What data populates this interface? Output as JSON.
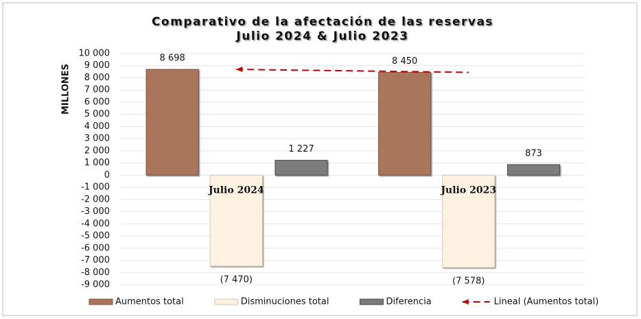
{
  "chart_data": {
    "type": "bar",
    "title": "Comparativo de la afectación de las reservas",
    "subtitle": "Julio 2024 & Julio 2023",
    "y_label": "MILLONES",
    "categories": [
      "Julio 2024",
      "Julio 2023"
    ],
    "series": [
      {
        "name": "Aumentos total",
        "color": "#a9765c",
        "values": [
          8698,
          8450
        ],
        "value_labels": [
          "8 698",
          "8 450"
        ]
      },
      {
        "name": "Disminuciones total",
        "color": "#fdf2e2",
        "values": [
          -7470,
          -7578
        ],
        "value_labels": [
          "(7 470)",
          "(7 578)"
        ]
      },
      {
        "name": "Diferencia",
        "color": "#7b7b7b",
        "values": [
          1227,
          873
        ],
        "value_labels": [
          "1 227",
          "873"
        ]
      }
    ],
    "trendline": {
      "name": "Lineal (Aumentos total)",
      "color": "#c00000"
    },
    "ylim": [
      -9000,
      10000
    ],
    "yticks": [
      {
        "value": 10000,
        "label": "10 000"
      },
      {
        "value": 9000,
        "label": "9 000"
      },
      {
        "value": 8000,
        "label": "8 000"
      },
      {
        "value": 7000,
        "label": "7 000"
      },
      {
        "value": 6000,
        "label": "6 000"
      },
      {
        "value": 5000,
        "label": "5 000"
      },
      {
        "value": 4000,
        "label": "4 000"
      },
      {
        "value": 3000,
        "label": "3 000"
      },
      {
        "value": 2000,
        "label": "2 000"
      },
      {
        "value": 1000,
        "label": "1 000"
      },
      0,
      {
        "value": -1000,
        "label": "-1 000"
      },
      {
        "value": -2000,
        "label": "-2 000"
      },
      {
        "value": -3000,
        "label": "-3 000"
      },
      {
        "value": -4000,
        "label": "-4 000"
      },
      {
        "value": -5000,
        "label": "-5 000"
      },
      {
        "value": -6000,
        "label": "-6 000"
      },
      {
        "value": -7000,
        "label": "-7 000"
      },
      {
        "value": -8000,
        "label": "-8 000"
      },
      {
        "value": -9000,
        "label": "-9 000"
      }
    ],
    "negative_tick_color": "#e00000",
    "grid": true,
    "legend": "bottom"
  }
}
